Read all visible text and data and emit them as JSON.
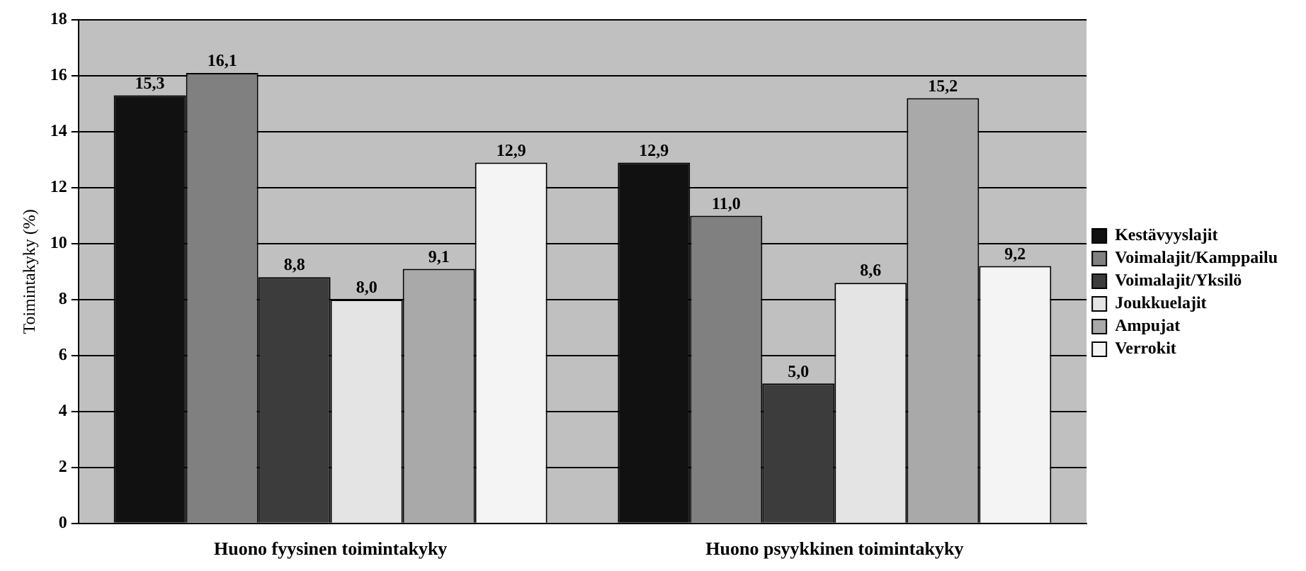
{
  "chart_data": {
    "type": "bar",
    "ylabel": "Toimintakyky (%)",
    "categories": [
      "Huono fyysinen toimintakyky",
      "Huono psyykkinen toimintakyky"
    ],
    "series": [
      {
        "name": "Kestävyyslajit",
        "color": "#111111",
        "values": [
          15.3,
          12.9
        ],
        "value_labels": [
          "15,3",
          "12,9"
        ]
      },
      {
        "name": "Voimalajit/Kamppailu",
        "color": "#808080",
        "values": [
          16.1,
          11.0
        ],
        "value_labels": [
          "16,1",
          "11,0"
        ]
      },
      {
        "name": "Voimalajit/Yksilö",
        "color": "#3c3c3c",
        "values": [
          8.8,
          5.0
        ],
        "value_labels": [
          "8,8",
          "5,0"
        ]
      },
      {
        "name": "Joukkuelajit",
        "color": "#e4e4e4",
        "values": [
          8.0,
          8.6
        ],
        "value_labels": [
          "8,0",
          "8,6"
        ]
      },
      {
        "name": "Ampujat",
        "color": "#a9a9a9",
        "values": [
          9.1,
          15.2
        ],
        "value_labels": [
          "9,1",
          "15,2"
        ]
      },
      {
        "name": "Verrokit",
        "color": "#f4f4f4",
        "values": [
          12.9,
          9.2
        ],
        "value_labels": [
          "12,9",
          "9,2"
        ]
      }
    ],
    "ylim": [
      0,
      18
    ],
    "yticks": [
      0,
      2,
      4,
      6,
      8,
      10,
      12,
      14,
      16,
      18
    ],
    "grid": "y",
    "legend": "right"
  }
}
